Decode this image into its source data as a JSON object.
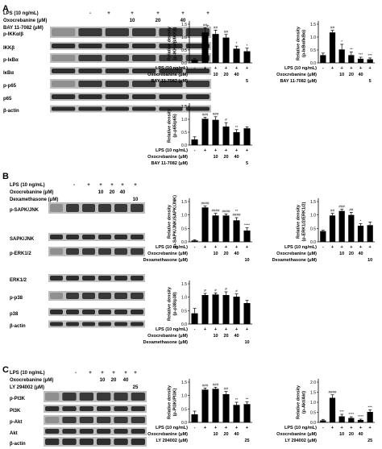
{
  "panels": [
    {
      "letter": "A",
      "rows": [
        {
          "label": "LPS (10 ng/mL)",
          "values": [
            "-",
            "+",
            "+",
            "+",
            "+",
            "+"
          ]
        },
        {
          "label": "Oxocrebanine (μM)",
          "values": [
            "",
            "",
            "10",
            "20",
            "40",
            ""
          ]
        },
        {
          "label": "BAY 11-7082 (μM)",
          "values": [
            "",
            "",
            "",
            "",
            "",
            "5"
          ]
        }
      ],
      "blots": [
        "p-IKKα/β",
        "IKKβ",
        "p-IκBα",
        "IκBα",
        "p-p65",
        "p65",
        "β-actin"
      ]
    },
    {
      "letter": "B",
      "rows": [
        {
          "label": "LPS (10 ng/mL)",
          "values": [
            "-",
            "+",
            "+",
            "+",
            "+",
            "+"
          ]
        },
        {
          "label": "Oxocrebanine (μM)",
          "values": [
            "",
            "",
            "10",
            "20",
            "40",
            ""
          ]
        },
        {
          "label": "Dexamethasone (μM)",
          "values": [
            "",
            "",
            "",
            "",
            "",
            "10"
          ]
        }
      ],
      "blots": [
        "p-SAPK/JNK",
        "SAPK/JNK",
        "p-ERK1/2",
        "ERK1/2",
        "p-p38",
        "p38",
        "β-actin"
      ]
    },
    {
      "letter": "C",
      "rows": [
        {
          "label": "LPS (10 ng/mL)",
          "values": [
            "-",
            "+",
            "+",
            "+",
            "+",
            "+"
          ]
        },
        {
          "label": "Oxocrebanine (μM)",
          "values": [
            "",
            "",
            "10",
            "20",
            "40",
            ""
          ]
        },
        {
          "label": "LY 294002 (μM)",
          "values": [
            "",
            "",
            "",
            "",
            "",
            "25"
          ]
        }
      ],
      "blots": [
        "p-PI3K",
        "PI3K",
        "p-Akt",
        "Akt",
        "β-actin"
      ]
    }
  ],
  "chart_data": [
    {
      "type": "bar",
      "panel": "A",
      "ylabel": "Relative density\n(p-IKKα/β/IKKβ)",
      "ylim": [
        0,
        1.5
      ],
      "yticks": [
        "0.0",
        "0.5",
        "1.0",
        "1.5"
      ],
      "values": [
        0.12,
        1.18,
        1.12,
        0.98,
        0.55,
        0.45
      ],
      "errors": [
        0.04,
        0.18,
        0.15,
        0.12,
        0.1,
        0.12
      ],
      "sig": [
        "",
        "##",
        "##",
        "##",
        "*",
        "*"
      ],
      "rows": 0
    },
    {
      "type": "bar",
      "panel": "A",
      "ylabel": "Relative density\n(p-IκBα/IκBα)",
      "ylim": [
        0,
        1.5
      ],
      "yticks": [
        "0.0",
        "0.5",
        "1.0",
        "1.5"
      ],
      "values": [
        0.3,
        1.18,
        0.52,
        0.3,
        0.16,
        0.14
      ],
      "errors": [
        0.08,
        0.08,
        0.2,
        0.12,
        0.06,
        0.05
      ],
      "sig": [
        "",
        "##",
        "*",
        "**",
        "***",
        "***"
      ],
      "rows": 0
    },
    {
      "type": "bar",
      "panel": "A",
      "ylabel": "Relative density\n(p-p65/p65)",
      "ylim": [
        0,
        1.5
      ],
      "yticks": [
        "0.0",
        "0.5",
        "1.0",
        "1.5"
      ],
      "values": [
        0.22,
        1.02,
        0.98,
        0.72,
        0.5,
        0.65
      ],
      "errors": [
        0.1,
        0.06,
        0.12,
        0.15,
        0.1,
        0.06
      ],
      "sig": [
        "",
        "###",
        "###",
        "#",
        "**",
        ""
      ],
      "rows": 0
    },
    {
      "type": "bar",
      "panel": "B",
      "ylabel": "Relative density\n(p-SAPK/JNK/SAPK/JNK)",
      "ylim": [
        0,
        1.5
      ],
      "yticks": [
        "0.0",
        "0.5",
        "1.0",
        "1.5"
      ],
      "values": [
        0.05,
        1.28,
        0.98,
        0.98,
        0.8,
        0.42
      ],
      "errors": [
        0.03,
        0.05,
        0.08,
        0.06,
        0.1,
        0.1
      ],
      "sig": [
        "",
        "####",
        "####",
        "####",
        "**\n####",
        "****"
      ],
      "rows": 1
    },
    {
      "type": "bar",
      "panel": "B",
      "ylabel": "Relative density\n(p-ERK1/2/ERK1/2)",
      "ylim": [
        0,
        1.5
      ],
      "yticks": [
        "0.0",
        "0.5",
        "1.0",
        "1.5"
      ],
      "values": [
        0.4,
        0.98,
        1.15,
        1.0,
        0.6,
        0.62
      ],
      "errors": [
        0.03,
        0.08,
        0.06,
        0.1,
        0.08,
        0.12
      ],
      "sig": [
        "",
        "##",
        "###",
        "##",
        "*",
        ""
      ],
      "rows": 1
    },
    {
      "type": "bar",
      "panel": "B",
      "ylabel": "Relative density\n(p-p38/p38)",
      "ylim": [
        0,
        1.5
      ],
      "yticks": [
        "0.0",
        "0.5",
        "1.0",
        "1.5"
      ],
      "values": [
        0.4,
        1.08,
        1.1,
        1.08,
        1.02,
        0.78
      ],
      "errors": [
        0.18,
        0.06,
        0.06,
        0.12,
        0.1,
        0.1
      ],
      "sig": [
        "",
        "#",
        "#",
        "#",
        "#",
        ""
      ],
      "rows": 1
    },
    {
      "type": "bar",
      "panel": "C",
      "ylabel": "Relative density\n(p-PI3K/PI3K)",
      "ylim": [
        0,
        1.5
      ],
      "yticks": [
        "0.0",
        "0.5",
        "1.0",
        "1.5"
      ],
      "values": [
        0.3,
        1.22,
        1.25,
        1.05,
        0.65,
        0.68
      ],
      "errors": [
        0.12,
        0.06,
        0.06,
        0.1,
        0.1,
        0.08
      ],
      "sig": [
        "",
        "###",
        "###",
        "##",
        "**",
        "**"
      ],
      "rows": 2
    },
    {
      "type": "bar",
      "panel": "C",
      "ylabel": "Relative density\n(p-Akt/Akt)",
      "ylim": [
        0,
        2.0
      ],
      "yticks": [
        "0.0",
        "0.5",
        "1.0",
        "1.5",
        "2.0"
      ],
      "values": [
        0.1,
        1.22,
        0.3,
        0.22,
        0.12,
        0.52
      ],
      "errors": [
        0.05,
        0.15,
        0.1,
        0.06,
        0.04,
        0.1
      ],
      "sig": [
        "",
        "####",
        "***",
        "****",
        "****",
        "***"
      ],
      "rows": 2
    }
  ]
}
